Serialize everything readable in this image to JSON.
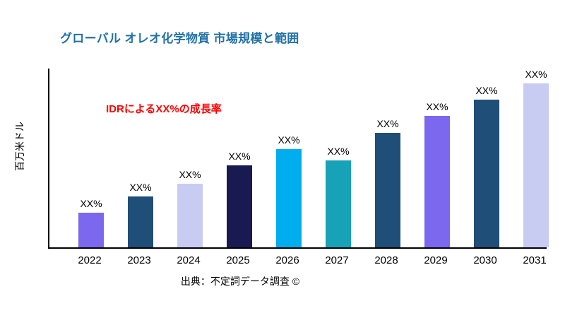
{
  "title": "グローバル オレオ化学物質 市場規模と範囲",
  "source": "出典：不定詞データ調査 ©",
  "chart_data": {
    "type": "bar",
    "title": "グローバル オレオ化学物質 市場規模と範囲",
    "xlabel": "",
    "ylabel": "百万米ドル",
    "annotation": "IDRによるXX%の成長率",
    "categories": [
      "2022",
      "2023",
      "2024",
      "2025",
      "2026",
      "2027",
      "2028",
      "2029",
      "2030",
      "2031"
    ],
    "values": [
      21,
      31,
      39,
      50,
      60,
      53,
      70,
      80,
      90,
      100
    ],
    "values_note": "relative bar heights (% of tallest bar); on-screen data labels are placeholders",
    "value_labels": [
      "XX%",
      "XX%",
      "XX%",
      "XX%",
      "XX%",
      "XX%",
      "XX%",
      "XX%",
      "XX%",
      "XX%"
    ],
    "bar_colors": [
      "#7B68EE",
      "#1F4E79",
      "#C9CCF2",
      "#1A1A52",
      "#00AEEF",
      "#17A2B8",
      "#1F4E79",
      "#7B68EE",
      "#1F4E79",
      "#C9CCF2"
    ],
    "colors": {
      "title": "#2171A7",
      "annotation": "#FF0000",
      "axis": "#000000",
      "background": "#FFFFFF"
    },
    "legend": "none",
    "grid": false
  }
}
